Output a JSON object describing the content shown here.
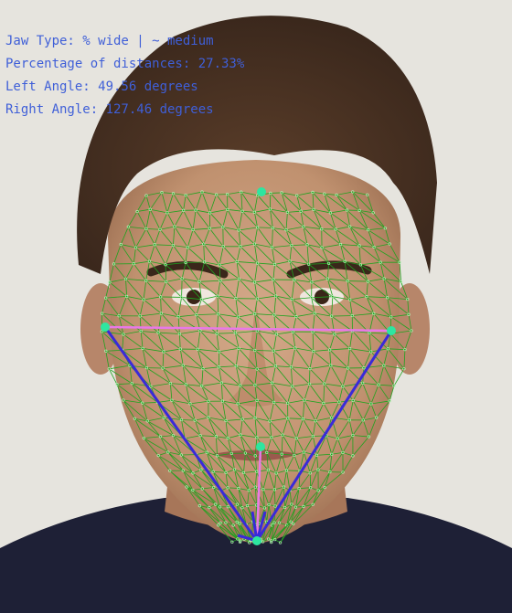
{
  "overlay": {
    "jaw_type_line": "Jaw Type: % wide | ~ medium",
    "percentage_line": "Percentage of distances: 27.33%",
    "left_angle_line": "Left Angle: 49.56 degrees",
    "right_angle_line": "Right Angle: 127.46 degrees",
    "text_color": "#3f5fd8"
  },
  "colors": {
    "mesh": "#1fa31f",
    "landmark": "#2ee6a0",
    "horizontal_line": "#e879e8",
    "vertical_line": "#e879e8",
    "jaw_lines": "#3a2ad8",
    "background": "#e9e7e1",
    "shirt": "#1d1f36",
    "skin": "#c79a7c",
    "hair": "#4a3222"
  }
}
